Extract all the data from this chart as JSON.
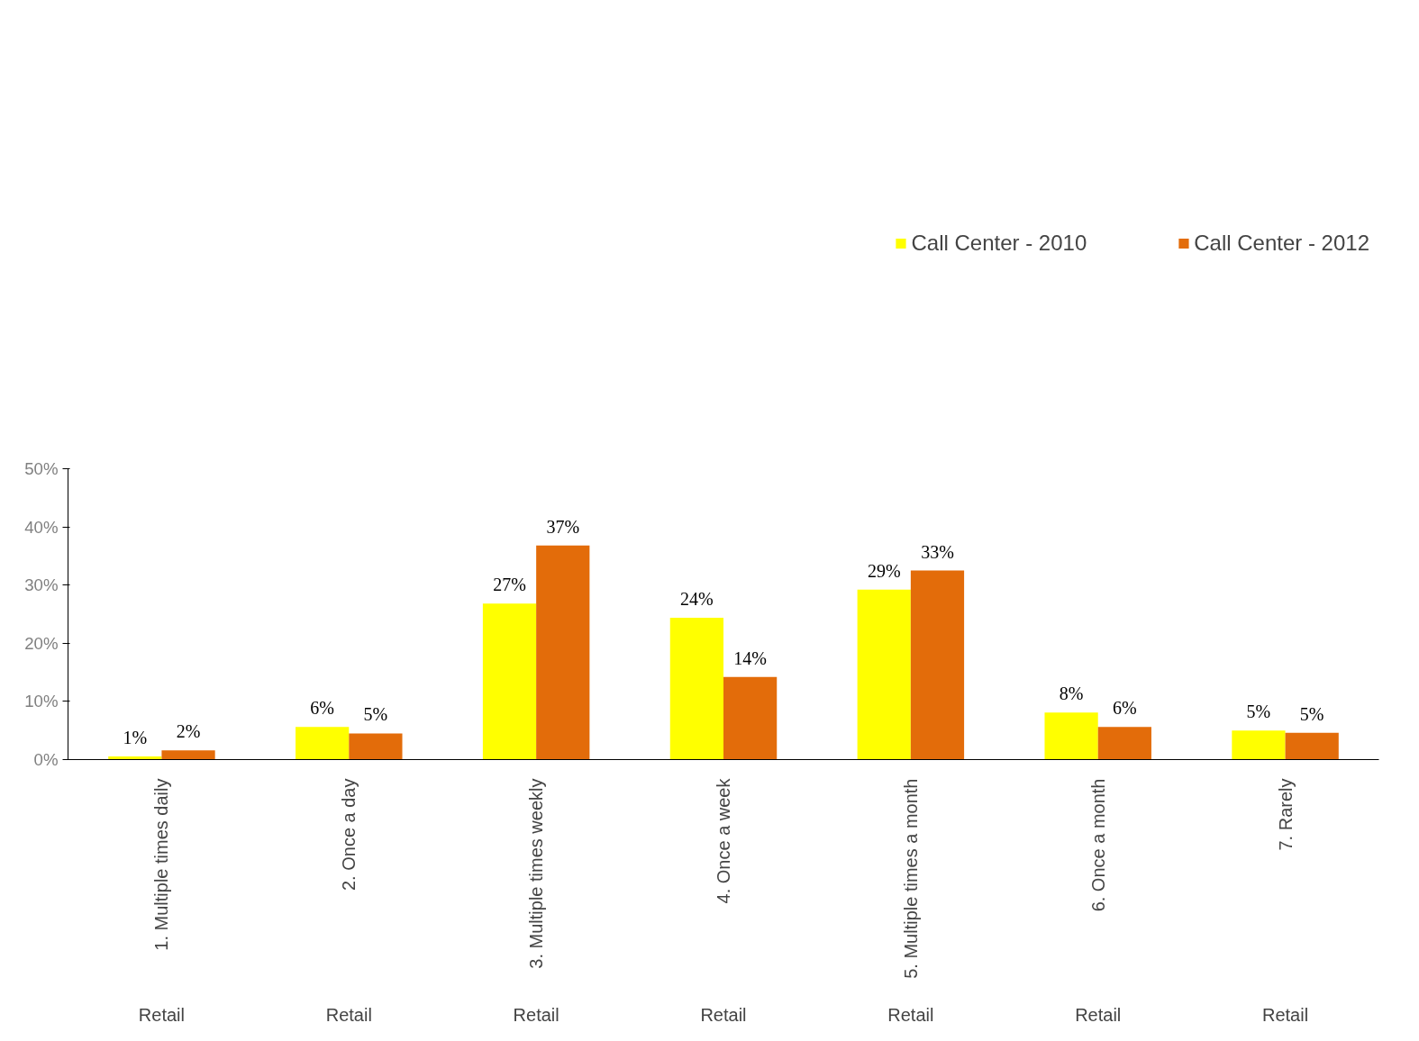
{
  "chart_data": {
    "type": "bar",
    "categories": [
      "1. Multiple times daily",
      "2. Once a day",
      "3. Multiple times weekly",
      "4. Once a week",
      "5. Multiple times a month",
      "6. Once a month",
      "7. Rarely"
    ],
    "series": [
      {
        "name": "Call Center - 2010",
        "color": "#ffff00",
        "values": [
          0.55,
          5.6,
          26.8,
          24.4,
          29.2,
          8.1,
          5.0
        ],
        "value_labels": [
          "1%",
          "6%",
          "27%",
          "24%",
          "29%",
          "8%",
          "5%"
        ]
      },
      {
        "name": "Call Center - 2012",
        "color": "#e36c0a",
        "values": [
          1.6,
          4.5,
          36.8,
          14.2,
          32.5,
          5.6,
          4.6
        ],
        "value_labels": [
          "2%",
          "5%",
          "37%",
          "14%",
          "33%",
          "6%",
          "5%"
        ]
      }
    ],
    "annotations": [
      "Retail",
      "Retail",
      "Retail",
      "Retail",
      "Retail",
      "Retail",
      "Retail"
    ],
    "ylim": [
      0,
      50
    ],
    "yticks": [
      {
        "value": 0,
        "label": "0%"
      },
      {
        "value": 10,
        "label": "10%"
      },
      {
        "value": 20,
        "label": "20%"
      },
      {
        "value": 30,
        "label": "30%"
      },
      {
        "value": 40,
        "label": "40%"
      },
      {
        "value": 50,
        "label": "50%"
      }
    ],
    "grid": false,
    "legend": "top right"
  }
}
